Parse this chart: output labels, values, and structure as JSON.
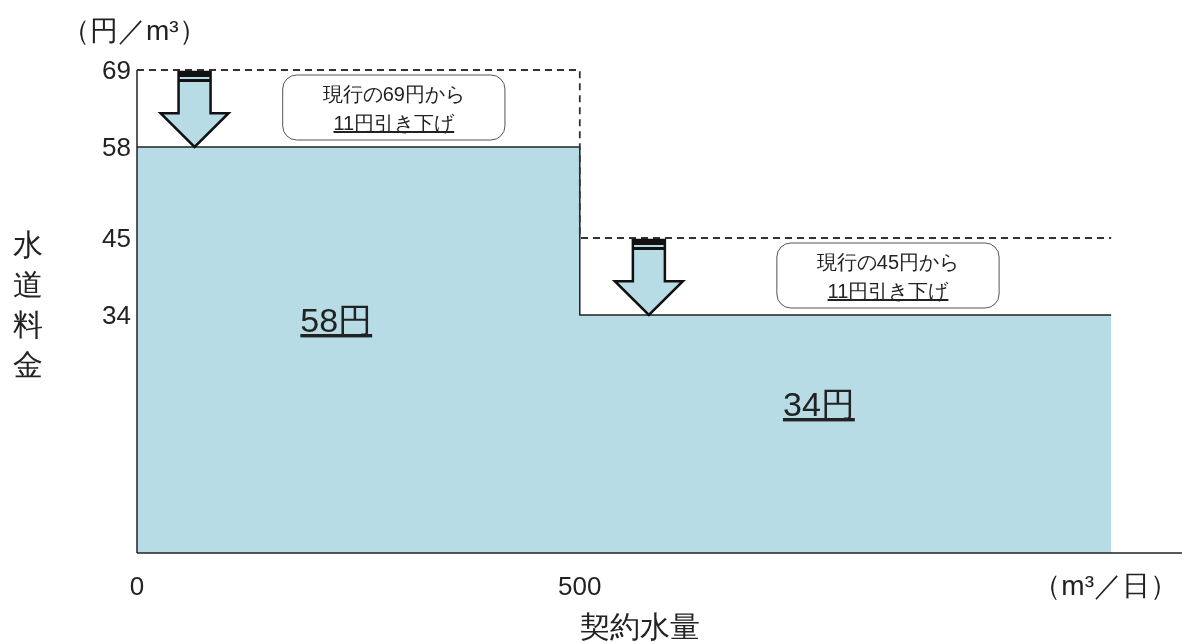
{
  "chart_data": {
    "type": "area",
    "ylabel": "水道料金",
    "xlabel": "契約水量",
    "xlim": [
      0,
      1180
    ],
    "xticks": [
      0,
      500
    ],
    "ylim": [
      0,
      69
    ],
    "yticks": [
      34,
      45,
      58,
      69
    ],
    "series": [
      {
        "type": "area",
        "color": "#b7dce6",
        "x": [
          0,
          500,
          500,
          1100
        ],
        "values": [
          58,
          58,
          34,
          34
        ]
      },
      {
        "type": "line",
        "line_style": "dashed",
        "color": "#333333",
        "x": [
          0,
          500,
          500,
          1100
        ],
        "values": [
          69,
          69,
          45,
          45
        ]
      }
    ],
    "annotations": [
      "（円／m³）",
      "（m³／日）",
      "現行の69円から\n11円引き下げ",
      "現行の45円から\n11円引き下げ",
      "58円",
      "34円"
    ]
  }
}
